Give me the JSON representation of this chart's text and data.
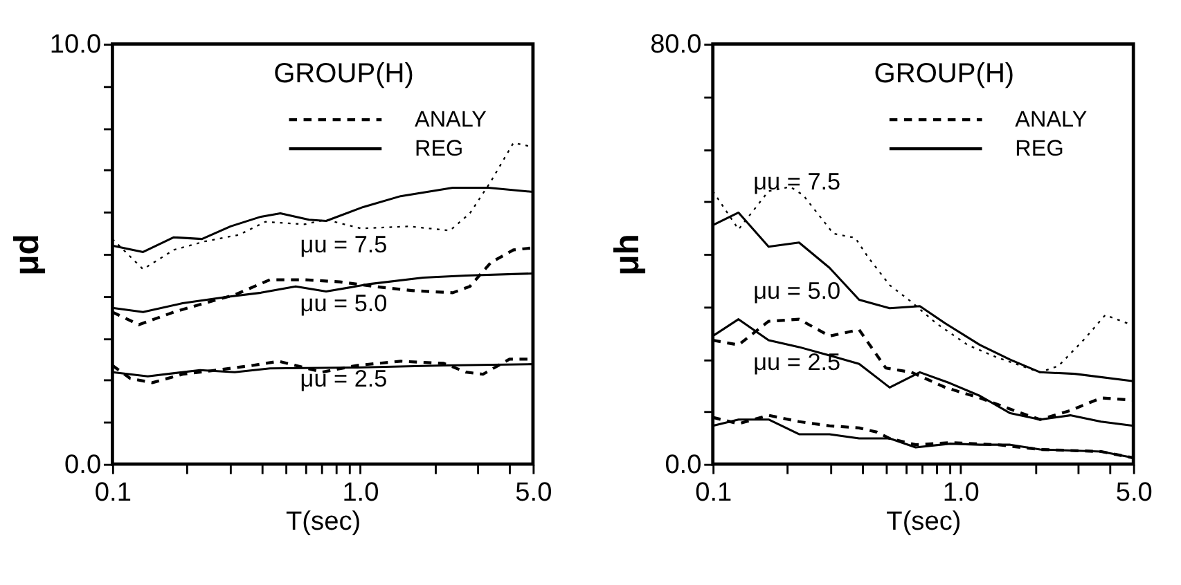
{
  "chart_data": [
    {
      "type": "line",
      "title": "GROUP(H)",
      "xlabel": "T(sec)",
      "ylabel": "μd",
      "xlim": [
        0.1,
        5.0
      ],
      "ylim": [
        0,
        10
      ],
      "xticks": [
        {
          "value": 0.1,
          "label": "0.1"
        },
        {
          "value": 0.2,
          "label": null
        },
        {
          "value": 0.3,
          "label": null
        },
        {
          "value": 0.4,
          "label": null
        },
        {
          "value": 0.5,
          "label": null
        },
        {
          "value": 0.6,
          "label": null
        },
        {
          "value": 0.7,
          "label": null
        },
        {
          "value": 0.8,
          "label": null
        },
        {
          "value": 0.9,
          "label": null
        },
        {
          "value": 1.0,
          "label": "1.0"
        },
        {
          "value": 2,
          "label": null
        },
        {
          "value": 3,
          "label": null
        },
        {
          "value": 4,
          "label": null
        },
        {
          "value": 5.0,
          "label": "5.0"
        }
      ],
      "yticks": [
        {
          "value": 0,
          "label": "0.0"
        },
        {
          "value": 1,
          "label": null
        },
        {
          "value": 2,
          "label": null
        },
        {
          "value": 3,
          "label": null
        },
        {
          "value": 4,
          "label": null
        },
        {
          "value": 5,
          "label": null
        },
        {
          "value": 6,
          "label": null
        },
        {
          "value": 7,
          "label": null
        },
        {
          "value": 8,
          "label": null
        },
        {
          "value": 9,
          "label": null
        },
        {
          "value": 10,
          "label": "10.0"
        }
      ],
      "log": "x",
      "grid": false,
      "legend": "top right",
      "marker": "none",
      "annotations": [
        "μu = 7.5",
        "μu = 5.0",
        "μu = 2.5"
      ],
      "series": [
        {
          "color": "#000000",
          "line_style": "dotted",
          "x": [
            0.1,
            0.133,
            0.177,
            0.235,
            0.325,
            0.415,
            0.598,
            0.73,
            1.01,
            1.58,
            2.31,
            2.78,
            3.38,
            4.17,
            5.0
          ],
          "values": [
            5.36,
            4.64,
            5.1,
            5.3,
            5.46,
            5.77,
            5.71,
            5.82,
            5.61,
            5.66,
            5.56,
            5.97,
            6.73,
            7.65,
            7.55
          ]
        },
        {
          "name": "REG",
          "color": "#000000",
          "line_style": "solid",
          "x": [
            0.1,
            0.133,
            0.177,
            0.23,
            0.3,
            0.398,
            0.477,
            0.622,
            0.73,
            1.03,
            1.46,
            2.37,
            3.3,
            5.0
          ],
          "values": [
            5.2,
            5.05,
            5.4,
            5.36,
            5.66,
            5.89,
            5.97,
            5.82,
            5.79,
            6.12,
            6.38,
            6.58,
            6.58,
            6.48
          ]
        },
        {
          "name": "ANALY",
          "color": "#000000",
          "line_style": "dashed",
          "x": [
            0.1,
            0.128,
            0.177,
            0.235,
            0.312,
            0.433,
            0.598,
            0.83,
            1.14,
            1.64,
            2.37,
            2.78,
            3.38,
            4.17,
            5.0
          ],
          "values": [
            3.62,
            3.32,
            3.62,
            3.83,
            4.03,
            4.39,
            4.39,
            4.34,
            4.23,
            4.13,
            4.08,
            4.23,
            4.8,
            5.1,
            5.15
          ]
        },
        {
          "color": "#000000",
          "line_style": "solid",
          "x": [
            0.1,
            0.133,
            0.192,
            0.288,
            0.398,
            0.55,
            0.73,
            1.1,
            1.8,
            2.68,
            5.0
          ],
          "values": [
            3.72,
            3.62,
            3.83,
            3.98,
            4.08,
            4.23,
            4.11,
            4.29,
            4.44,
            4.49,
            4.54
          ]
        },
        {
          "color": "#000000",
          "line_style": "dashed",
          "x": [
            0.1,
            0.118,
            0.145,
            0.192,
            0.265,
            0.368,
            0.47,
            0.703,
            0.97,
            1.46,
            2.18,
            2.68,
            3.14,
            4.02,
            5.0
          ],
          "values": [
            2.35,
            2.04,
            1.94,
            2.14,
            2.24,
            2.35,
            2.45,
            2.19,
            2.35,
            2.45,
            2.4,
            2.19,
            2.14,
            2.5,
            2.5
          ]
        },
        {
          "color": "#000000",
          "line_style": "solid",
          "x": [
            0.1,
            0.139,
            0.226,
            0.312,
            0.433,
            0.97,
            2.18,
            5.0
          ],
          "values": [
            2.19,
            2.09,
            2.24,
            2.19,
            2.28,
            2.3,
            2.35,
            2.38
          ]
        }
      ]
    },
    {
      "type": "line",
      "title": "GROUP(H)",
      "xlabel": "T(sec)",
      "ylabel": "μh",
      "xlim": [
        0.1,
        5.0
      ],
      "ylim": [
        0,
        80
      ],
      "xticks": [
        {
          "value": 0.1,
          "label": "0.1"
        },
        {
          "value": 0.2,
          "label": null
        },
        {
          "value": 0.3,
          "label": null
        },
        {
          "value": 0.4,
          "label": null
        },
        {
          "value": 0.5,
          "label": null
        },
        {
          "value": 0.6,
          "label": null
        },
        {
          "value": 0.7,
          "label": null
        },
        {
          "value": 0.8,
          "label": null
        },
        {
          "value": 0.9,
          "label": null
        },
        {
          "value": 1.0,
          "label": "1.0"
        },
        {
          "value": 2,
          "label": null
        },
        {
          "value": 3,
          "label": null
        },
        {
          "value": 4,
          "label": null
        },
        {
          "value": 5.0,
          "label": "5.0"
        }
      ],
      "yticks": [
        {
          "value": 0,
          "label": "0.0"
        },
        {
          "value": 10,
          "label": null
        },
        {
          "value": 20,
          "label": null
        },
        {
          "value": 30,
          "label": null
        },
        {
          "value": 40,
          "label": null
        },
        {
          "value": 50,
          "label": null
        },
        {
          "value": 60,
          "label": null
        },
        {
          "value": 70,
          "label": null
        },
        {
          "value": 80,
          "label": "80.0"
        }
      ],
      "log": "x",
      "grid": false,
      "legend": "top right",
      "marker": "none",
      "annotations": [
        "μu = 7.5",
        "μu = 5.0",
        "μu = 2.5"
      ],
      "series": [
        {
          "color": "#000000",
          "line_style": "dotted",
          "x": [
            0.1,
            0.127,
            0.168,
            0.206,
            0.232,
            0.307,
            0.376,
            0.424,
            0.518,
            0.634,
            0.8,
            1.07,
            1.41,
            2.1,
            2.49,
            3.14,
            3.85,
            5.0
          ],
          "values": [
            52,
            44.7,
            52,
            52.8,
            51.2,
            43.9,
            43.1,
            39.4,
            34.1,
            30.9,
            26.8,
            22.7,
            20.3,
            17.5,
            18.7,
            23.6,
            28.4,
            26.4
          ]
        },
        {
          "name": "REG",
          "color": "#000000",
          "line_style": "solid",
          "x": [
            0.1,
            0.127,
            0.168,
            0.223,
            0.296,
            0.39,
            0.518,
            0.686,
            0.87,
            1.2,
            1.59,
            2.1,
            2.9,
            5.0
          ],
          "values": [
            45.5,
            47.9,
            41.4,
            42.2,
            37.4,
            31.3,
            29.7,
            30.1,
            26.8,
            22.7,
            19.9,
            17.5,
            17.2,
            15.8
          ]
        },
        {
          "name": "ANALY",
          "color": "#000000",
          "line_style": "dashed",
          "x": [
            0.1,
            0.127,
            0.168,
            0.223,
            0.296,
            0.39,
            0.5,
            0.634,
            0.87,
            1.2,
            1.65,
            2.1,
            2.78,
            3.7,
            5.0
          ],
          "values": [
            23.6,
            22.7,
            27.2,
            27.6,
            24.4,
            25.6,
            18.3,
            17.5,
            14.6,
            12.6,
            10.2,
            8.5,
            10.2,
            12.6,
            12.2
          ]
        },
        {
          "color": "#000000",
          "line_style": "solid",
          "x": [
            0.1,
            0.127,
            0.168,
            0.223,
            0.296,
            0.39,
            0.518,
            0.686,
            0.91,
            1.2,
            1.59,
            2.1,
            2.78,
            3.7,
            5.0
          ],
          "values": [
            24.4,
            27.6,
            23.6,
            22.3,
            20.7,
            19.1,
            14.6,
            17.5,
            15.4,
            13.0,
            9.7,
            8.5,
            9.3,
            8.1,
            7.3
          ]
        },
        {
          "color": "#000000",
          "line_style": "dashed",
          "x": [
            0.1,
            0.127,
            0.168,
            0.223,
            0.296,
            0.39,
            0.46,
            0.518,
            0.66,
            0.91,
            1.41,
            2.1,
            3.7,
            5.0
          ],
          "values": [
            8.9,
            7.7,
            9.3,
            8.1,
            7.3,
            6.9,
            6.1,
            4.9,
            3.7,
            4.1,
            3.7,
            2.8,
            2.4,
            1.2
          ]
        },
        {
          "color": "#000000",
          "line_style": "solid",
          "x": [
            0.1,
            0.127,
            0.168,
            0.223,
            0.296,
            0.39,
            0.518,
            0.66,
            0.91,
            1.2,
            1.59,
            2.1,
            3.7,
            5.0
          ],
          "values": [
            7.3,
            8.5,
            8.5,
            5.7,
            5.7,
            4.9,
            4.9,
            3.2,
            3.9,
            3.7,
            3.7,
            2.8,
            2.4,
            1.2
          ]
        }
      ]
    }
  ]
}
